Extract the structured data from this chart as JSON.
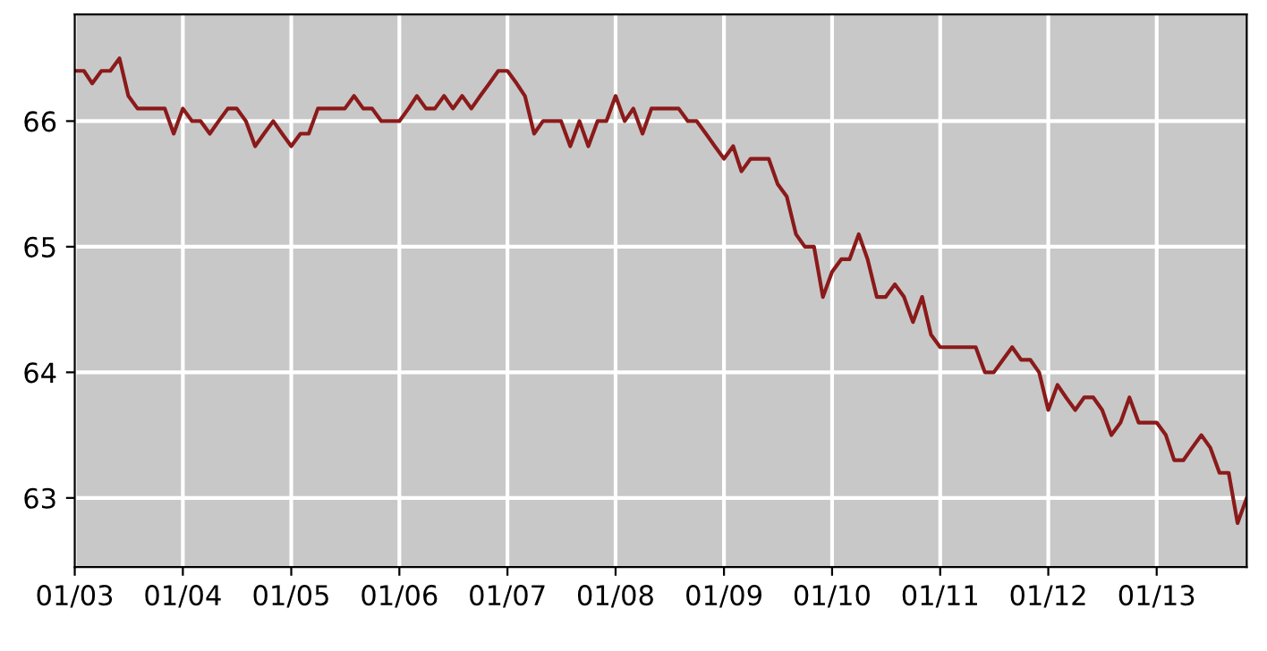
{
  "chart_data": {
    "type": "line",
    "x": [
      "2003-01",
      "2003-02",
      "2003-03",
      "2003-04",
      "2003-05",
      "2003-06",
      "2003-07",
      "2003-08",
      "2003-09",
      "2003-10",
      "2003-11",
      "2003-12",
      "2004-01",
      "2004-02",
      "2004-03",
      "2004-04",
      "2004-05",
      "2004-06",
      "2004-07",
      "2004-08",
      "2004-09",
      "2004-10",
      "2004-11",
      "2004-12",
      "2005-01",
      "2005-02",
      "2005-03",
      "2005-04",
      "2005-05",
      "2005-06",
      "2005-07",
      "2005-08",
      "2005-09",
      "2005-10",
      "2005-11",
      "2005-12",
      "2006-01",
      "2006-02",
      "2006-03",
      "2006-04",
      "2006-05",
      "2006-06",
      "2006-07",
      "2006-08",
      "2006-09",
      "2006-10",
      "2006-11",
      "2006-12",
      "2007-01",
      "2007-02",
      "2007-03",
      "2007-04",
      "2007-05",
      "2007-06",
      "2007-07",
      "2007-08",
      "2007-09",
      "2007-10",
      "2007-11",
      "2007-12",
      "2008-01",
      "2008-02",
      "2008-03",
      "2008-04",
      "2008-05",
      "2008-06",
      "2008-07",
      "2008-08",
      "2008-09",
      "2008-10",
      "2008-11",
      "2008-12",
      "2009-01",
      "2009-02",
      "2009-03",
      "2009-04",
      "2009-05",
      "2009-06",
      "2009-07",
      "2009-08",
      "2009-09",
      "2009-10",
      "2009-11",
      "2009-12",
      "2010-01",
      "2010-02",
      "2010-03",
      "2010-04",
      "2010-05",
      "2010-06",
      "2010-07",
      "2010-08",
      "2010-09",
      "2010-10",
      "2010-11",
      "2010-12",
      "2011-01",
      "2011-02",
      "2011-03",
      "2011-04",
      "2011-05",
      "2011-06",
      "2011-07",
      "2011-08",
      "2011-09",
      "2011-10",
      "2011-11",
      "2011-12",
      "2012-01",
      "2012-02",
      "2012-03",
      "2012-04",
      "2012-05",
      "2012-06",
      "2012-07",
      "2012-08",
      "2012-09",
      "2012-10",
      "2012-11",
      "2012-12",
      "2013-01",
      "2013-02",
      "2013-03",
      "2013-04",
      "2013-05",
      "2013-06",
      "2013-07",
      "2013-08",
      "2013-09",
      "2013-10",
      "2013-11"
    ],
    "series": [
      {
        "color": "#8b1a1a",
        "values": [
          66.4,
          66.4,
          66.3,
          66.4,
          66.4,
          66.5,
          66.2,
          66.1,
          66.1,
          66.1,
          66.1,
          65.9,
          66.1,
          66.0,
          66.0,
          65.9,
          66.0,
          66.1,
          66.1,
          66.0,
          65.8,
          65.9,
          66.0,
          65.9,
          65.8,
          65.9,
          65.9,
          66.1,
          66.1,
          66.1,
          66.1,
          66.2,
          66.1,
          66.1,
          66.0,
          66.0,
          66.0,
          66.1,
          66.2,
          66.1,
          66.1,
          66.2,
          66.1,
          66.2,
          66.1,
          66.2,
          66.3,
          66.4,
          66.4,
          66.3,
          66.2,
          65.9,
          66.0,
          66.0,
          66.0,
          65.8,
          66.0,
          65.8,
          66.0,
          66.0,
          66.2,
          66.0,
          66.1,
          65.9,
          66.1,
          66.1,
          66.1,
          66.1,
          66.0,
          66.0,
          65.9,
          65.8,
          65.7,
          65.8,
          65.6,
          65.7,
          65.7,
          65.7,
          65.5,
          65.4,
          65.1,
          65.0,
          65.0,
          64.6,
          64.8,
          64.9,
          64.9,
          65.1,
          64.9,
          64.6,
          64.6,
          64.7,
          64.6,
          64.4,
          64.6,
          64.3,
          64.2,
          64.2,
          64.2,
          64.2,
          64.2,
          64.0,
          64.0,
          64.1,
          64.2,
          64.1,
          64.1,
          64.0,
          63.7,
          63.9,
          63.8,
          63.7,
          63.8,
          63.8,
          63.7,
          63.5,
          63.6,
          63.8,
          63.6,
          63.6,
          63.6,
          63.5,
          63.3,
          63.3,
          63.4,
          63.5,
          63.4,
          63.2,
          63.2,
          62.8,
          63.0
        ]
      }
    ],
    "xlim": [
      "2003-01",
      "2013-11"
    ],
    "xticks": [
      {
        "value": "2003-01",
        "label": "01/03"
      },
      {
        "value": "2004-01",
        "label": "01/04"
      },
      {
        "value": "2005-01",
        "label": "01/05"
      },
      {
        "value": "2006-01",
        "label": "01/06"
      },
      {
        "value": "2007-01",
        "label": "01/07"
      },
      {
        "value": "2008-01",
        "label": "01/08"
      },
      {
        "value": "2009-01",
        "label": "01/09"
      },
      {
        "value": "2010-01",
        "label": "01/10"
      },
      {
        "value": "2011-01",
        "label": "01/11"
      },
      {
        "value": "2012-01",
        "label": "01/12"
      },
      {
        "value": "2013-01",
        "label": "01/13"
      }
    ],
    "ylim": [
      62.45,
      66.85
    ],
    "yticks": [
      63,
      64,
      65,
      66
    ],
    "grid": true,
    "legend": false,
    "marker": "none",
    "line_style": "solid"
  }
}
